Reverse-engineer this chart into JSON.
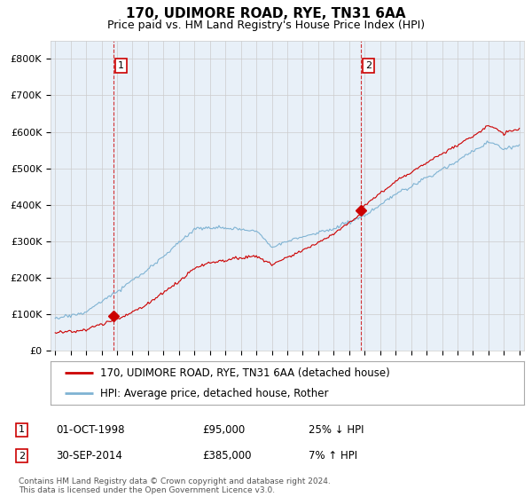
{
  "title": "170, UDIMORE ROAD, RYE, TN31 6AA",
  "subtitle": "Price paid vs. HM Land Registry's House Price Index (HPI)",
  "ylim": [
    0,
    850000
  ],
  "yticks": [
    0,
    100000,
    200000,
    300000,
    400000,
    500000,
    600000,
    700000,
    800000
  ],
  "ytick_labels": [
    "£0",
    "£100K",
    "£200K",
    "£300K",
    "£400K",
    "£500K",
    "£600K",
    "£700K",
    "£800K"
  ],
  "line1_color": "#cc0000",
  "line2_color": "#7fb3d3",
  "marker_color": "#cc0000",
  "vline_color": "#cc0000",
  "grid_color": "#cccccc",
  "bg_color": "#ffffff",
  "plot_bg": "#e8f0f8",
  "legend_label1": "170, UDIMORE ROAD, RYE, TN31 6AA (detached house)",
  "legend_label2": "HPI: Average price, detached house, Rother",
  "annotation1_date": "01-OCT-1998",
  "annotation1_price": "£95,000",
  "annotation1_hpi": "25% ↓ HPI",
  "annotation2_date": "30-SEP-2014",
  "annotation2_price": "£385,000",
  "annotation2_hpi": "7% ↑ HPI",
  "footnote": "Contains HM Land Registry data © Crown copyright and database right 2024.\nThis data is licensed under the Open Government Licence v3.0.",
  "sale1_x": 1998.75,
  "sale1_y": 95000,
  "sale2_x": 2014.75,
  "sale2_y": 385000,
  "xlim_left": 1994.7,
  "xlim_right": 2025.3
}
